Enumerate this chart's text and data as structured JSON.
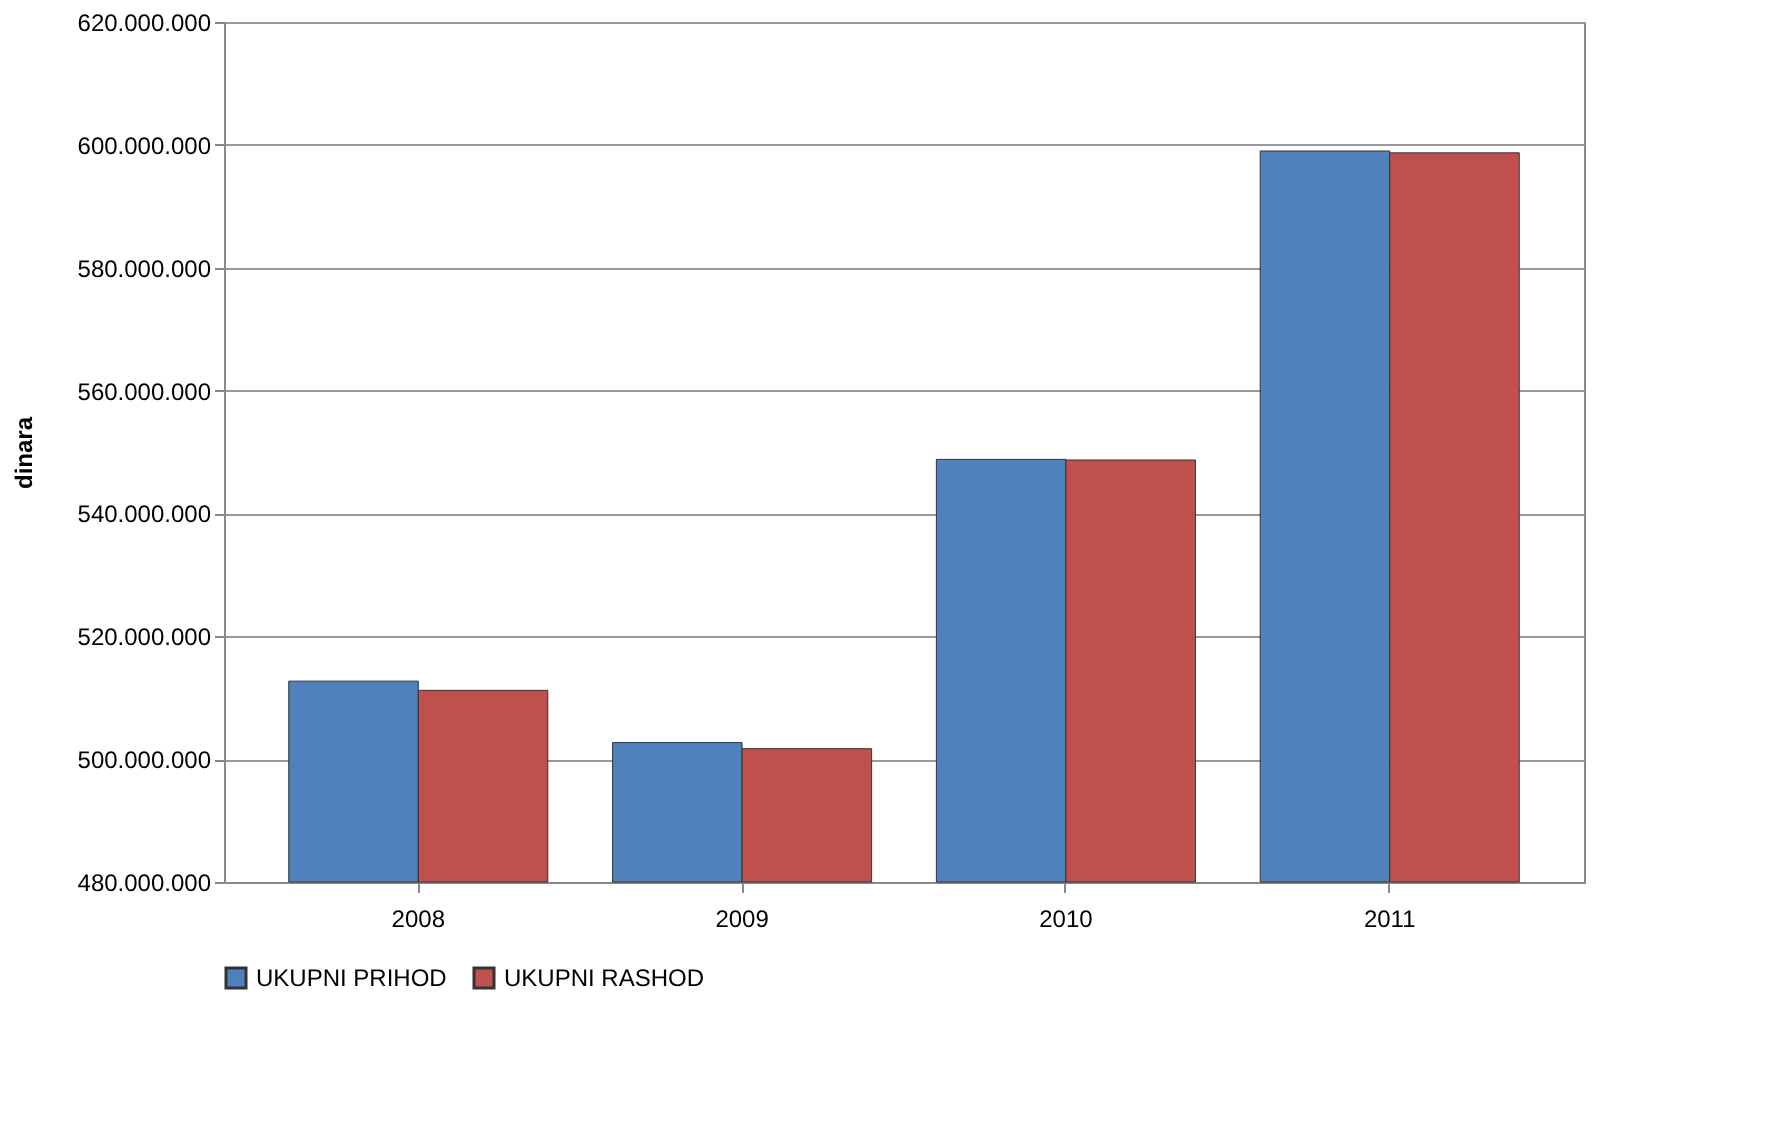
{
  "chart_data": {
    "type": "bar",
    "ylabel": "dinara",
    "categories": [
      "2008",
      "2009",
      "2010",
      "2011"
    ],
    "series": [
      {
        "name": "UKUPNI PRIHOD",
        "color": "#4f81bd",
        "values": [
          512700000,
          502700000,
          548800000,
          599000000
        ]
      },
      {
        "name": "UKUPNI RASHOD",
        "color": "#c0504d",
        "values": [
          511200000,
          501700000,
          548700000,
          598700000
        ]
      }
    ],
    "ylim": [
      480000000,
      620000000
    ],
    "yticks": [
      {
        "value": 480000000,
        "label": "480.000.000"
      },
      {
        "value": 500000000,
        "label": "500.000.000"
      },
      {
        "value": 520000000,
        "label": "520.000.000"
      },
      {
        "value": 540000000,
        "label": "540.000.000"
      },
      {
        "value": 560000000,
        "label": "560.000.000"
      },
      {
        "value": 580000000,
        "label": "580.000.000"
      },
      {
        "value": 600000000,
        "label": "600.000.000"
      },
      {
        "value": 620000000,
        "label": "620.000.000"
      }
    ],
    "grid": "y",
    "legend": "bottom"
  }
}
